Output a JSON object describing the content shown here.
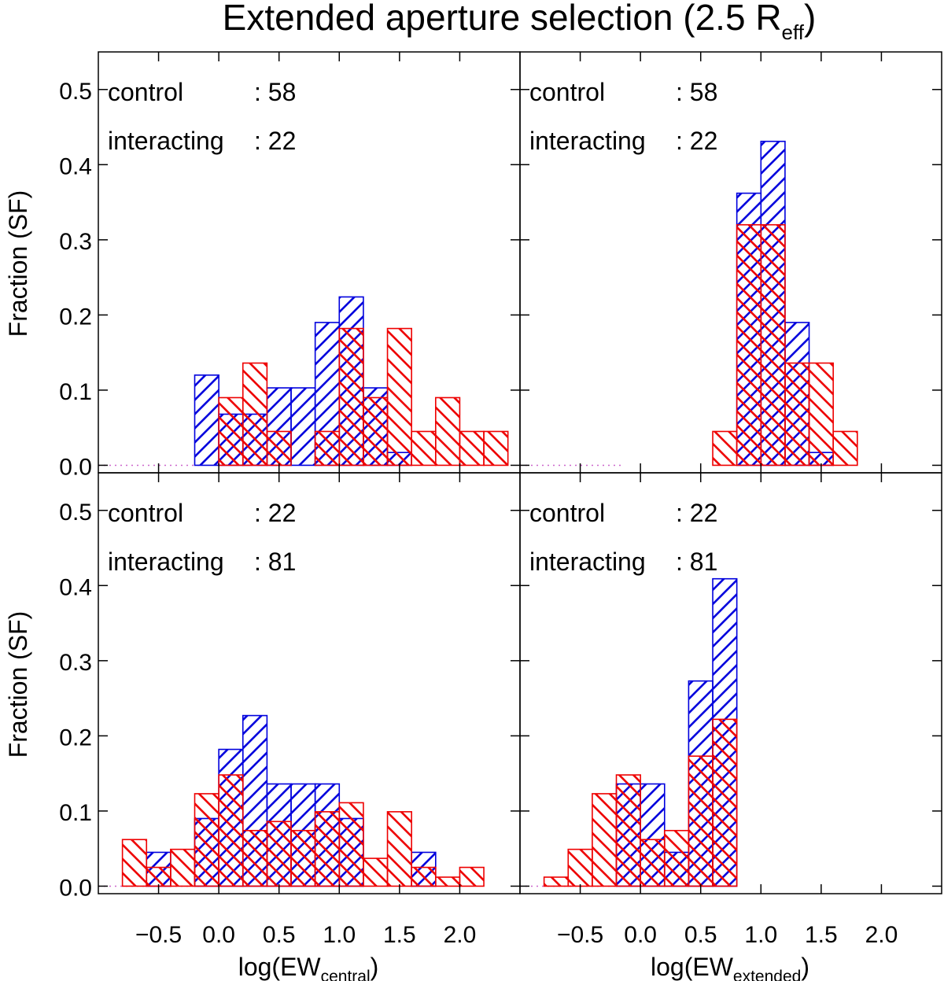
{
  "title": {
    "main": "Extended aperture selection (2.5 R",
    "sub": "eff",
    "tail": ")"
  },
  "ylabel": "Fraction (SF)",
  "xlabels": [
    {
      "main": "log(EW",
      "sub": "central",
      "tail": ")"
    },
    {
      "main": "log(EW",
      "sub": "extended",
      "tail": ")"
    }
  ],
  "x_tick_labels": [
    "−0.5",
    "0.0",
    "0.5",
    "1.0",
    "1.5",
    "2.0"
  ],
  "y_tick_labels": [
    "0.0",
    "0.1",
    "0.2",
    "0.3",
    "0.4",
    "0.5"
  ],
  "colors": {
    "control": "#0000dd",
    "interacting": "#ee0000",
    "axis": "#000000"
  },
  "chart_data": [
    {
      "type": "bar",
      "panel": "top-left",
      "xlim": [
        -1.0,
        2.5
      ],
      "ylim": [
        -0.01,
        0.55
      ],
      "bin_width": 0.2,
      "annotations": [
        {
          "label": "control",
          "sep": ":",
          "count": "58"
        },
        {
          "label": "interacting",
          "sep": ":",
          "count": "22"
        }
      ],
      "series": [
        {
          "name": "control",
          "color": "#0000dd",
          "hatch": "forward",
          "bin_starts": [
            -0.2,
            0.0,
            0.2,
            0.4,
            0.6,
            0.8,
            1.0,
            1.2,
            1.4
          ],
          "values": [
            0.12,
            0.068,
            0.068,
            0.103,
            0.103,
            0.19,
            0.224,
            0.103,
            0.017
          ]
        },
        {
          "name": "interacting",
          "color": "#ee0000",
          "hatch": "backward",
          "bin_starts": [
            0.0,
            0.2,
            0.4,
            0.8,
            1.0,
            1.2,
            1.4,
            1.6,
            1.8,
            2.0,
            2.2
          ],
          "values": [
            0.09,
            0.136,
            0.045,
            0.045,
            0.182,
            0.09,
            0.182,
            0.045,
            0.09,
            0.045,
            0.045
          ]
        }
      ]
    },
    {
      "type": "bar",
      "panel": "top-right",
      "xlim": [
        -1.0,
        2.5
      ],
      "ylim": [
        -0.01,
        0.55
      ],
      "bin_width": 0.2,
      "annotations": [
        {
          "label": "control",
          "sep": ":",
          "count": "58"
        },
        {
          "label": "interacting",
          "sep": ":",
          "count": "22"
        }
      ],
      "series": [
        {
          "name": "control",
          "color": "#0000dd",
          "hatch": "forward",
          "bin_starts": [
            0.8,
            1.0,
            1.2,
            1.4
          ],
          "values": [
            0.362,
            0.431,
            0.19,
            0.017
          ]
        },
        {
          "name": "interacting",
          "color": "#ee0000",
          "hatch": "backward",
          "bin_starts": [
            0.6,
            0.8,
            1.0,
            1.2,
            1.4,
            1.6
          ],
          "values": [
            0.045,
            0.32,
            0.32,
            0.136,
            0.136,
            0.045
          ]
        }
      ]
    },
    {
      "type": "bar",
      "panel": "bottom-left",
      "xlim": [
        -1.0,
        2.5
      ],
      "ylim": [
        -0.01,
        0.55
      ],
      "bin_width": 0.2,
      "annotations": [
        {
          "label": "control",
          "sep": ":",
          "count": "22"
        },
        {
          "label": "interacting",
          "sep": ":",
          "count": "81"
        }
      ],
      "series": [
        {
          "name": "control",
          "color": "#0000dd",
          "hatch": "forward",
          "bin_starts": [
            -0.6,
            -0.2,
            0.0,
            0.2,
            0.4,
            0.6,
            0.8,
            1.0,
            1.6
          ],
          "values": [
            0.045,
            0.09,
            0.182,
            0.227,
            0.136,
            0.136,
            0.136,
            0.09,
            0.045
          ]
        },
        {
          "name": "interacting",
          "color": "#ee0000",
          "hatch": "backward",
          "bin_starts": [
            -0.8,
            -0.6,
            -0.4,
            -0.2,
            0.0,
            0.2,
            0.4,
            0.6,
            0.8,
            1.0,
            1.2,
            1.4,
            1.6,
            1.8,
            2.0
          ],
          "values": [
            0.062,
            0.025,
            0.049,
            0.123,
            0.148,
            0.074,
            0.086,
            0.074,
            0.099,
            0.111,
            0.037,
            0.099,
            0.025,
            0.012,
            0.025
          ]
        }
      ]
    },
    {
      "type": "bar",
      "panel": "bottom-right",
      "xlim": [
        -1.0,
        2.5
      ],
      "ylim": [
        -0.01,
        0.55
      ],
      "bin_width": 0.2,
      "annotations": [
        {
          "label": "control",
          "sep": ":",
          "count": "22"
        },
        {
          "label": "interacting",
          "sep": ":",
          "count": "81"
        }
      ],
      "series": [
        {
          "name": "control",
          "color": "#0000dd",
          "hatch": "forward",
          "bin_starts": [
            -0.2,
            0.0,
            0.2,
            0.4,
            0.6
          ],
          "values": [
            0.136,
            0.136,
            0.045,
            0.273,
            0.409
          ]
        },
        {
          "name": "interacting",
          "color": "#ee0000",
          "hatch": "backward",
          "bin_starts": [
            -0.8,
            -0.6,
            -0.4,
            -0.2,
            0.0,
            0.2,
            0.4,
            0.6
          ],
          "values": [
            0.012,
            0.049,
            0.123,
            0.148,
            0.062,
            0.074,
            0.173,
            0.222
          ]
        }
      ]
    }
  ]
}
